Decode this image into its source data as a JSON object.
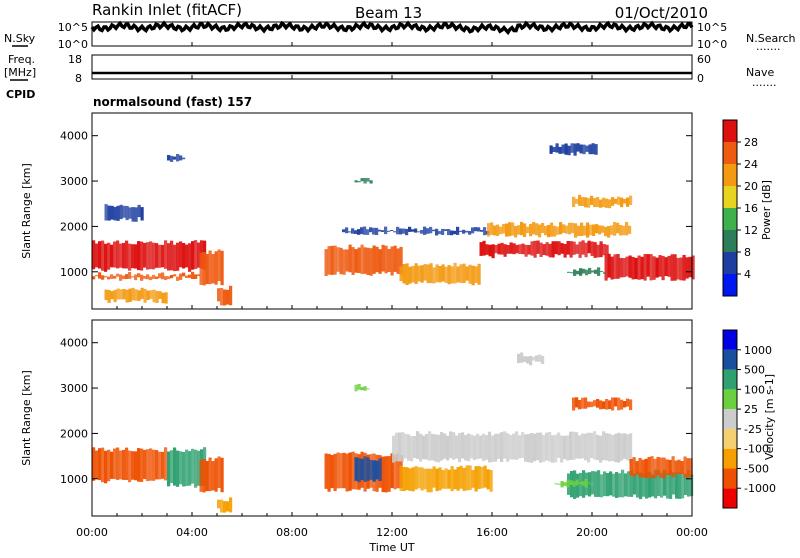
{
  "header": {
    "station": "Rankin Inlet (fitACF)",
    "beam": "Beam 13",
    "date": "01/Oct/2010"
  },
  "sidebar": {
    "nsky": "N.Sky",
    "freq_top": "Freq.",
    "freq_unit": "[MHz]",
    "cpid": "CPID",
    "nsearch": "N.Search",
    "nave": "Nave",
    "dots": "......."
  },
  "cpid_text": "normalsound (fast) 157",
  "x_axis": {
    "label": "Time UT",
    "ticks": [
      "00:00",
      "04:00",
      "08:00",
      "12:00",
      "16:00",
      "20:00",
      "00:00"
    ]
  },
  "colors": {
    "power_scale": [
      "#0018f0",
      "#1e3fa0",
      "#2e7d5a",
      "#3fb14c",
      "#e6d41e",
      "#f39a12",
      "#ee5a10",
      "#dd1010"
    ],
    "velocity_scale": [
      "#ee0000",
      "#ee5000",
      "#f5a000",
      "#f5d070",
      "#cccccc",
      "#6bd040",
      "#2fa070",
      "#1a4fa0",
      "#0000e0"
    ]
  },
  "chart_data": [
    {
      "type": "line",
      "name": "noise-strip",
      "left_labels": [
        "10^5",
        "10^0"
      ],
      "right_labels": [
        "10^5",
        "10^0"
      ],
      "xlim": [
        0,
        24
      ]
    },
    {
      "type": "line",
      "name": "frequency-strip",
      "left_labels": [
        "18",
        "8"
      ],
      "right_labels": [
        "60",
        "0"
      ],
      "xlim": [
        0,
        24
      ],
      "values": [
        {
          "x": 0,
          "y": 10.5
        },
        {
          "x": 24,
          "y": 10.5
        }
      ]
    },
    {
      "type": "heatmap",
      "name": "power-panel",
      "ylabel": "Slant Range [km]",
      "yticks": [
        1000,
        2000,
        3000,
        4000
      ],
      "ylim": [
        180,
        4500
      ],
      "xlim": [
        0,
        24
      ],
      "colorbar": {
        "label": "Power [dB]",
        "ticks": [
          "4",
          "8",
          "12",
          "16",
          "20",
          "24",
          "28"
        ]
      },
      "regions": [
        {
          "t0": 0.0,
          "t1": 4.5,
          "r0": 1000,
          "r1": 1700,
          "color": "#dd1010"
        },
        {
          "t0": 0.0,
          "t1": 4.3,
          "r0": 800,
          "r1": 1000,
          "color": "#ee5a10"
        },
        {
          "t0": 4.3,
          "t1": 5.2,
          "r0": 700,
          "r1": 1500,
          "color": "#ee5a10"
        },
        {
          "t0": 5.0,
          "t1": 5.6,
          "r0": 250,
          "r1": 700,
          "color": "#ee5a10"
        },
        {
          "t0": 0.5,
          "t1": 3.0,
          "r0": 300,
          "r1": 650,
          "color": "#f39a12"
        },
        {
          "t0": 3.0,
          "t1": 3.7,
          "r0": 3400,
          "r1": 3600,
          "color": "#1e3fa0"
        },
        {
          "t0": 0.5,
          "t1": 2.0,
          "r0": 2100,
          "r1": 2500,
          "color": "#1e3fa0"
        },
        {
          "t0": 9.3,
          "t1": 12.3,
          "r0": 900,
          "r1": 1600,
          "color": "#ee5a10"
        },
        {
          "t0": 12.3,
          "t1": 15.5,
          "r0": 700,
          "r1": 1200,
          "color": "#f39a12"
        },
        {
          "t0": 10.0,
          "t1": 15.8,
          "r0": 1800,
          "r1": 2000,
          "color": "#1e3fa0"
        },
        {
          "t0": 15.5,
          "t1": 20.6,
          "r0": 1300,
          "r1": 1700,
          "color": "#dd1010"
        },
        {
          "t0": 15.8,
          "t1": 21.5,
          "r0": 1750,
          "r1": 2100,
          "color": "#f39a12"
        },
        {
          "t0": 20.5,
          "t1": 24.0,
          "r0": 800,
          "r1": 1400,
          "color": "#dd1010"
        },
        {
          "t0": 19.0,
          "t1": 20.5,
          "r0": 900,
          "r1": 1100,
          "color": "#2e7d5a"
        },
        {
          "t0": 10.5,
          "t1": 11.2,
          "r0": 2900,
          "r1": 3100,
          "color": "#2e7d5a"
        },
        {
          "t0": 18.3,
          "t1": 20.2,
          "r0": 3550,
          "r1": 3850,
          "color": "#1e3fa0"
        },
        {
          "t0": 19.2,
          "t1": 21.6,
          "r0": 2400,
          "r1": 2700,
          "color": "#f39a12"
        }
      ]
    },
    {
      "type": "heatmap",
      "name": "velocity-panel",
      "ylabel": "Slant Range [km]",
      "yticks": [
        1000,
        2000,
        3000,
        4000
      ],
      "ylim": [
        180,
        4500
      ],
      "xlim": [
        0,
        24
      ],
      "colorbar": {
        "label": "Velocity [m s-1]",
        "ticks": [
          "1000",
          "500",
          "100",
          "25",
          "-25",
          "-100",
          "-500",
          "-1000"
        ]
      },
      "regions": [
        {
          "t0": 0.0,
          "t1": 3.0,
          "r0": 900,
          "r1": 1700,
          "color": "#ee5000"
        },
        {
          "t0": 3.0,
          "t1": 4.5,
          "r0": 800,
          "r1": 1700,
          "color": "#2fa070"
        },
        {
          "t0": 4.3,
          "t1": 5.2,
          "r0": 700,
          "r1": 1500,
          "color": "#ee5000"
        },
        {
          "t0": 5.0,
          "t1": 5.6,
          "r0": 250,
          "r1": 600,
          "color": "#f5a000"
        },
        {
          "t0": 9.3,
          "t1": 12.3,
          "r0": 700,
          "r1": 1600,
          "color": "#ee5000"
        },
        {
          "t0": 10.5,
          "t1": 11.5,
          "r0": 900,
          "r1": 1500,
          "color": "#1a4fa0"
        },
        {
          "t0": 12.3,
          "t1": 16.0,
          "r0": 700,
          "r1": 1300,
          "color": "#f5a000"
        },
        {
          "t0": 12.0,
          "t1": 21.5,
          "r0": 1350,
          "r1": 2050,
          "color": "#cccccc"
        },
        {
          "t0": 19.0,
          "t1": 24.0,
          "r0": 550,
          "r1": 1200,
          "color": "#2fa070"
        },
        {
          "t0": 21.5,
          "t1": 24.0,
          "r0": 1000,
          "r1": 1500,
          "color": "#ee5000"
        },
        {
          "t0": 17.0,
          "t1": 18.0,
          "r0": 3500,
          "r1": 3800,
          "color": "#cccccc"
        },
        {
          "t0": 10.5,
          "t1": 11.0,
          "r0": 2900,
          "r1": 3100,
          "color": "#6bd040"
        },
        {
          "t0": 19.2,
          "t1": 21.5,
          "r0": 2500,
          "r1": 2800,
          "color": "#ee5000"
        },
        {
          "t0": 18.5,
          "t1": 20.0,
          "r0": 800,
          "r1": 1000,
          "color": "#6bd040"
        }
      ]
    }
  ]
}
